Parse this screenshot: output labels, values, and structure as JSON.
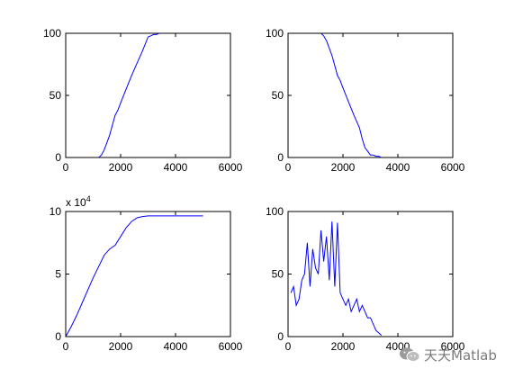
{
  "watermark": {
    "text": "天天Matlab",
    "icon": "wechat-icon"
  },
  "chart_data": [
    {
      "type": "line",
      "xlim": [
        0,
        6000
      ],
      "ylim": [
        0,
        100
      ],
      "xticks": [
        0,
        2000,
        4000,
        6000
      ],
      "yticks": [
        0,
        50,
        100
      ],
      "color": "#0000ff",
      "x": [
        1200,
        1300,
        1400,
        1500,
        1600,
        1700,
        1800,
        1900,
        2000,
        2200,
        2400,
        2600,
        2800,
        3000,
        3100,
        3200,
        3300,
        3400
      ],
      "y": [
        0,
        2,
        6,
        12,
        18,
        26,
        34,
        38,
        44,
        55,
        66,
        76,
        86,
        97,
        98,
        99,
        99,
        100
      ]
    },
    {
      "type": "line",
      "xlim": [
        0,
        6000
      ],
      "ylim": [
        0,
        100
      ],
      "xticks": [
        0,
        2000,
        4000,
        6000
      ],
      "yticks": [
        0,
        50,
        100
      ],
      "color": "#0000ff",
      "x": [
        1200,
        1300,
        1400,
        1500,
        1600,
        1700,
        1800,
        1900,
        2000,
        2200,
        2400,
        2600,
        2700,
        2800,
        2900,
        3000,
        3100,
        3200,
        3300,
        3400
      ],
      "y": [
        100,
        98,
        94,
        88,
        82,
        74,
        66,
        62,
        56,
        45,
        34,
        24,
        15,
        8,
        5,
        2,
        2,
        1,
        1,
        0
      ]
    },
    {
      "type": "line",
      "xlim": [
        0,
        6000
      ],
      "ylim": [
        0,
        10
      ],
      "xticks": [
        0,
        2000,
        4000,
        6000
      ],
      "yticks": [
        0,
        5,
        10
      ],
      "exponent_label": "x 10^4",
      "color": "#0000ff",
      "x": [
        0,
        200,
        400,
        600,
        800,
        1000,
        1200,
        1400,
        1600,
        1800,
        2000,
        2200,
        2400,
        2600,
        2800,
        3000,
        3500,
        4000,
        5000
      ],
      "y": [
        0,
        0.8,
        1.7,
        2.7,
        3.7,
        4.7,
        5.6,
        6.5,
        7.0,
        7.3,
        8.0,
        8.7,
        9.2,
        9.5,
        9.6,
        9.65,
        9.65,
        9.65,
        9.65
      ]
    },
    {
      "type": "line",
      "xlim": [
        0,
        6000
      ],
      "ylim": [
        0,
        100
      ],
      "xticks": [
        0,
        2000,
        4000,
        6000
      ],
      "yticks": [
        0,
        50,
        100
      ],
      "color": "#0000ff",
      "x": [
        100,
        200,
        300,
        400,
        500,
        600,
        700,
        800,
        900,
        1000,
        1100,
        1200,
        1300,
        1400,
        1500,
        1600,
        1700,
        1800,
        1900,
        2000,
        2100,
        2200,
        2300,
        2400,
        2500,
        2600,
        2700,
        2800,
        2900,
        3000,
        3100,
        3200,
        3300,
        3400
      ],
      "y": [
        35,
        40,
        25,
        30,
        45,
        50,
        75,
        40,
        70,
        55,
        50,
        85,
        60,
        80,
        45,
        92,
        40,
        91,
        35,
        30,
        25,
        30,
        20,
        25,
        30,
        20,
        25,
        20,
        15,
        15,
        10,
        5,
        3,
        1
      ]
    }
  ]
}
